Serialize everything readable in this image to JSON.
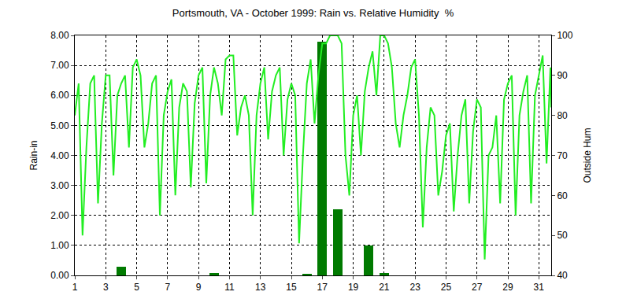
{
  "chart_data": {
    "type": "bar",
    "title": "Portsmouth, VA - October 1999: Rain vs. Relative Humidity  %",
    "ylabel": "Rain-in",
    "y2label": "Outside Hum",
    "xlim": [
      1,
      31.8
    ],
    "xticks": [
      1,
      3,
      5,
      7,
      9,
      11,
      13,
      15,
      17,
      19,
      21,
      23,
      25,
      27,
      29,
      31
    ],
    "ylim": [
      0,
      8
    ],
    "yticks": [
      {
        "value": 0,
        "label": "0.00"
      },
      {
        "value": 1,
        "label": "1.00"
      },
      {
        "value": 2,
        "label": "2.00"
      },
      {
        "value": 3,
        "label": "3.00"
      },
      {
        "value": 4,
        "label": "4.00"
      },
      {
        "value": 5,
        "label": "5.00"
      },
      {
        "value": 6,
        "label": "6.00"
      },
      {
        "value": 7,
        "label": "7.00"
      },
      {
        "value": 8,
        "label": "8.00"
      }
    ],
    "y2lim": [
      40,
      100
    ],
    "y2ticks": [
      40,
      50,
      60,
      70,
      80,
      90,
      100
    ],
    "grid": true,
    "series": [
      {
        "type": "bar",
        "color": "#007a00",
        "x": [
          4,
          10,
          16,
          17,
          18,
          20,
          21
        ],
        "values": [
          0.3,
          0.08,
          0.05,
          7.8,
          2.2,
          1.0,
          0.08
        ]
      },
      {
        "type": "line",
        "axis": "y2",
        "color": "#22ee22",
        "x": [
          1,
          1.25,
          1.5,
          1.75,
          2,
          2.25,
          2.5,
          2.75,
          3,
          3.25,
          3.5,
          3.75,
          4,
          4.25,
          4.5,
          4.75,
          5,
          5.25,
          5.5,
          5.75,
          6,
          6.25,
          6.5,
          6.75,
          7,
          7.25,
          7.5,
          7.75,
          8,
          8.25,
          8.5,
          8.75,
          9,
          9.25,
          9.5,
          9.75,
          10,
          10.25,
          10.5,
          10.75,
          11,
          11.25,
          11.5,
          11.75,
          12,
          12.25,
          12.5,
          12.75,
          13,
          13.25,
          13.5,
          13.75,
          14,
          14.25,
          14.5,
          14.75,
          15,
          15.25,
          15.5,
          15.75,
          16,
          16.25,
          16.5,
          16.75,
          17,
          17.25,
          17.5,
          17.75,
          18,
          18.25,
          18.5,
          18.75,
          19,
          19.25,
          19.5,
          19.75,
          20,
          20.25,
          20.5,
          20.75,
          21,
          21.25,
          21.5,
          21.75,
          22,
          22.25,
          22.5,
          22.75,
          23,
          23.25,
          23.5,
          23.75,
          24,
          24.25,
          24.5,
          24.75,
          25,
          25.25,
          25.5,
          25.75,
          26,
          26.25,
          26.5,
          26.75,
          27,
          27.25,
          27.5,
          27.75,
          28,
          28.25,
          28.5,
          28.75,
          29,
          29.25,
          29.5,
          29.75,
          30,
          30.25,
          30.5,
          30.75,
          31,
          31.25,
          31.5,
          31.75,
          31.8
        ],
        "values": [
          80,
          88,
          50,
          72,
          88,
          90,
          58,
          78,
          90,
          90,
          65,
          85,
          88,
          90,
          72,
          92,
          94,
          90,
          72,
          78,
          88,
          90,
          55,
          80,
          86,
          89,
          60,
          82,
          88,
          86,
          62,
          83,
          90,
          92,
          63,
          85,
          92,
          88,
          80,
          94,
          95,
          95,
          75,
          82,
          85,
          80,
          55,
          80,
          88,
          92,
          74,
          86,
          90,
          92,
          70,
          84,
          88,
          85,
          48,
          70,
          88,
          94,
          78,
          90,
          98,
          98,
          100,
          100,
          100,
          98,
          70,
          60,
          80,
          85,
          70,
          86,
          92,
          96,
          85,
          100,
          100,
          98,
          92,
          78,
          72,
          80,
          85,
          92,
          94,
          80,
          52,
          72,
          82,
          80,
          60,
          66,
          75,
          78,
          56,
          70,
          80,
          84,
          58,
          76,
          84,
          82,
          44,
          70,
          72,
          80,
          58,
          84,
          88,
          90,
          55,
          80,
          86,
          90,
          58,
          85,
          90,
          95,
          68,
          92,
          82
        ]
      }
    ]
  }
}
